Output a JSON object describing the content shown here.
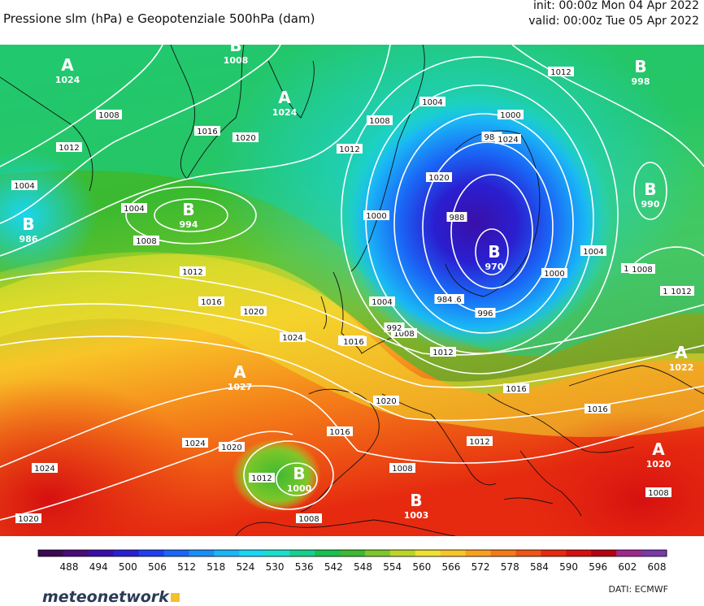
{
  "header": {
    "title": "Pressione slm (hPa) e Geopotenziale 500hPa (dam)",
    "init": "init: 00:00z Mon 04 Apr 2022",
    "valid": "valid: 00:00z Tue 05 Apr 2022"
  },
  "colorbar": {
    "labels": [
      "488",
      "494",
      "500",
      "506",
      "512",
      "518",
      "524",
      "530",
      "536",
      "542",
      "548",
      "554",
      "560",
      "566",
      "572",
      "578",
      "584",
      "590",
      "596",
      "602",
      "608"
    ],
    "colors": [
      "#3b0a52",
      "#4b0b78",
      "#3a0fa8",
      "#2a1fd0",
      "#1f3ff0",
      "#1a66f6",
      "#1a8ef8",
      "#1ab6f6",
      "#19d6f2",
      "#18e0cc",
      "#16d08f",
      "#18c050",
      "#3cba30",
      "#7ec62a",
      "#bcd426",
      "#f0e030",
      "#f8c428",
      "#f8a020",
      "#f47a18",
      "#ee5414",
      "#e62a10",
      "#d61010",
      "#b40010",
      "#9c2a8c",
      "#7a3aa8"
    ]
  },
  "map": {
    "centers": [
      {
        "letter": "A",
        "value": "1024",
        "color": "#ffffff"
      },
      {
        "letter": "B",
        "value": "1008",
        "color": "#ffffff"
      },
      {
        "letter": "A",
        "value": "1024",
        "color": "#ffffff"
      },
      {
        "letter": "B",
        "value": "994",
        "color": "#ffffff"
      },
      {
        "letter": "B",
        "value": "986",
        "color": "#ffffff"
      },
      {
        "letter": "B",
        "value": "998",
        "color": "#ffffff"
      },
      {
        "letter": "B",
        "value": "990",
        "color": "#ffffff"
      },
      {
        "letter": "B",
        "value": "970",
        "color": "#ffffff"
      },
      {
        "letter": "A",
        "value": "1027",
        "color": "#ffffff"
      },
      {
        "letter": "B",
        "value": "1000",
        "color": "#ffffff"
      },
      {
        "letter": "B",
        "value": "1003",
        "color": "#ffffff"
      },
      {
        "letter": "A",
        "value": "1022",
        "color": "#ffffff"
      },
      {
        "letter": "A",
        "value": "1020",
        "color": "#ffffff"
      }
    ],
    "isobar_labels": [
      "1008",
      "1012",
      "1016",
      "1020",
      "1004",
      "1004",
      "1008",
      "1012",
      "1008",
      "1012",
      "1016",
      "1020",
      "1024",
      "1024",
      "1020",
      "1024",
      "1020",
      "1016",
      "1004",
      "1000",
      "988",
      "984",
      "996",
      "1000",
      "1004",
      "1008",
      "1012",
      "1016",
      "1016",
      "1016",
      "1012",
      "1008",
      "1008",
      "1012",
      "1020",
      "1016",
      "1012",
      "1008",
      "1016",
      "1020",
      "1024",
      "1012",
      "1000",
      "1004",
      "1008",
      "1016",
      "984",
      "992",
      "1008",
      "1012",
      "1016"
    ]
  },
  "footer": {
    "brand": "meteonetwork",
    "source": "DATI:  ECMWF"
  }
}
